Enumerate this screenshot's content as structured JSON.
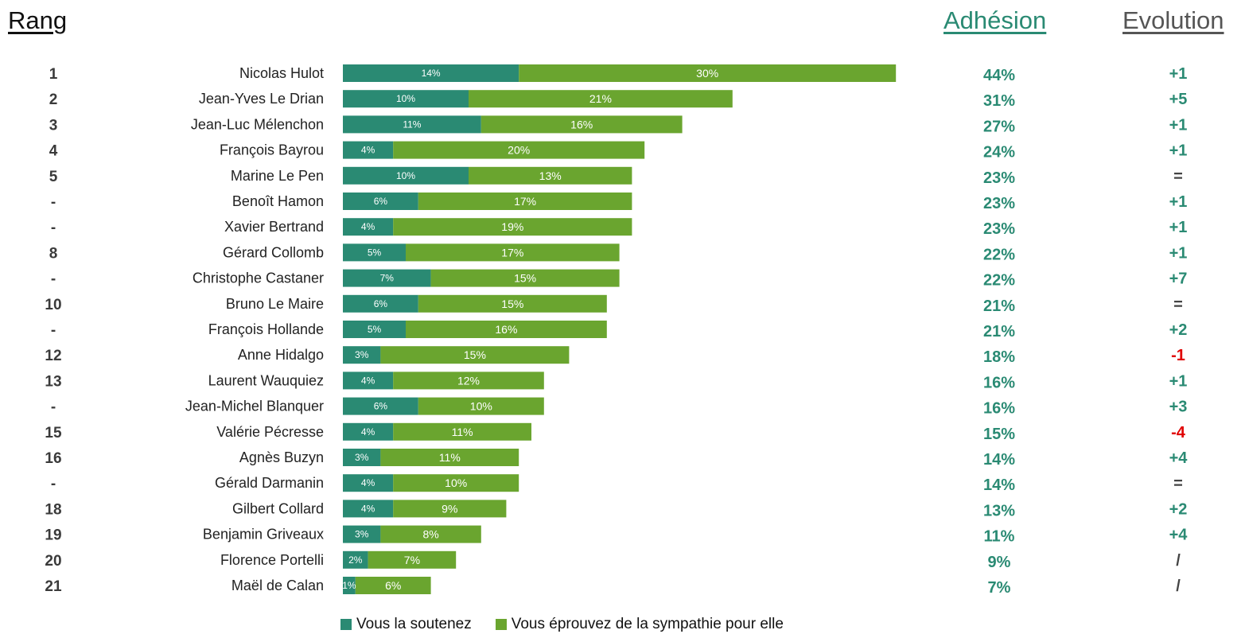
{
  "header": {
    "rank_label": "Rang",
    "adhesion_label": "Adhésion",
    "evolution_label": "Evolution"
  },
  "colors": {
    "support": "#2a8a73",
    "sympathy": "#6aa52f",
    "adhesion_text": "#2a8a73",
    "evo_positive": "#2a8a73",
    "evo_negative": "#e00000",
    "evo_neutral": "#444444"
  },
  "legend": {
    "support_label": "Vous la soutenez",
    "sympathy_label": "Vous éprouvez de la sympathie pour elle"
  },
  "chart_data": {
    "type": "bar",
    "orientation": "horizontal",
    "stacked": true,
    "categories": [
      "Nicolas Hulot",
      "Jean-Yves Le Drian",
      "Jean-Luc Mélenchon",
      "François Bayrou",
      "Marine Le Pen",
      "Benoît Hamon",
      "Xavier Bertrand",
      "Gérard Collomb",
      "Christophe Castaner",
      "Bruno Le Maire",
      "François Hollande",
      "Anne Hidalgo",
      "Laurent Wauquiez",
      "Jean-Michel Blanquer",
      "Valérie Pécresse",
      "Agnès Buzyn",
      "Gérald Darmanin",
      "Gilbert Collard",
      "Benjamin Griveaux",
      "Florence Portelli",
      "Maël de Calan"
    ],
    "ranks": [
      "1",
      "2",
      "3",
      "4",
      "5",
      "-",
      "-",
      "8",
      "-",
      "10",
      "-",
      "12",
      "13",
      "-",
      "15",
      "16",
      "-",
      "18",
      "19",
      "20",
      "21"
    ],
    "series": [
      {
        "name": "Vous la soutenez",
        "values": [
          14,
          10,
          11,
          4,
          10,
          6,
          4,
          5,
          7,
          6,
          5,
          3,
          4,
          6,
          4,
          3,
          4,
          4,
          3,
          2,
          1
        ]
      },
      {
        "name": "Vous éprouvez de la sympathie pour elle",
        "values": [
          30,
          21,
          16,
          20,
          13,
          17,
          19,
          17,
          15,
          15,
          16,
          15,
          12,
          10,
          11,
          11,
          10,
          9,
          8,
          7,
          6
        ]
      }
    ],
    "adhesion": [
      "44%",
      "31%",
      "27%",
      "24%",
      "23%",
      "23%",
      "23%",
      "22%",
      "22%",
      "21%",
      "21%",
      "18%",
      "16%",
      "16%",
      "15%",
      "14%",
      "14%",
      "13%",
      "11%",
      "9%",
      "7%"
    ],
    "evolution": [
      "+1",
      "+5",
      "+1",
      "+1",
      "=",
      "+1",
      "+1",
      "+1",
      "+7",
      "=",
      "+2",
      "-1",
      "+1",
      "+3",
      "-4",
      "+4",
      "=",
      "+2",
      "+4",
      "/",
      "/"
    ],
    "legend_position": "bottom",
    "grid": false
  }
}
